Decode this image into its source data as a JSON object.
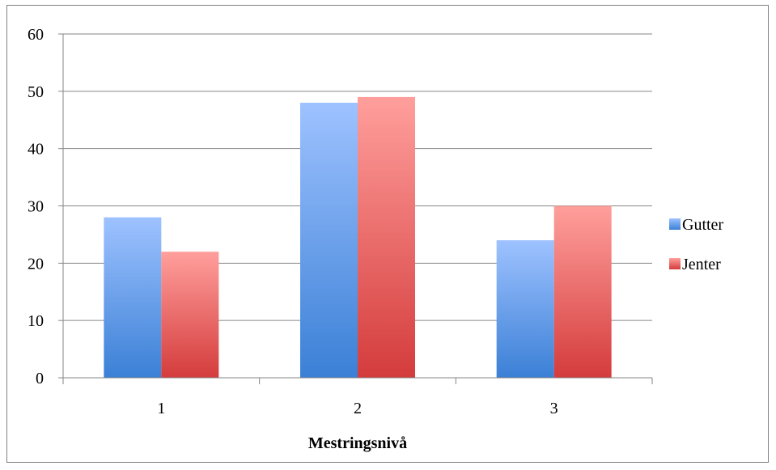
{
  "chart_data": {
    "type": "bar",
    "categories": [
      "1",
      "2",
      "3"
    ],
    "series": [
      {
        "name": "Gutter",
        "values": [
          28,
          48,
          24
        ],
        "color_top": "#9ec2ff",
        "color_bottom": "#3b80d6"
      },
      {
        "name": "Jenter",
        "values": [
          22,
          49,
          30
        ],
        "color_top": "#ff9f9c",
        "color_bottom": "#d43c3c"
      }
    ],
    "xlabel": "Mestringsnivå",
    "ylabel": "",
    "ylim": [
      0,
      60
    ],
    "yticks": [
      0,
      10,
      20,
      30,
      40,
      50,
      60
    ],
    "grid": true,
    "legend_position": "right"
  }
}
